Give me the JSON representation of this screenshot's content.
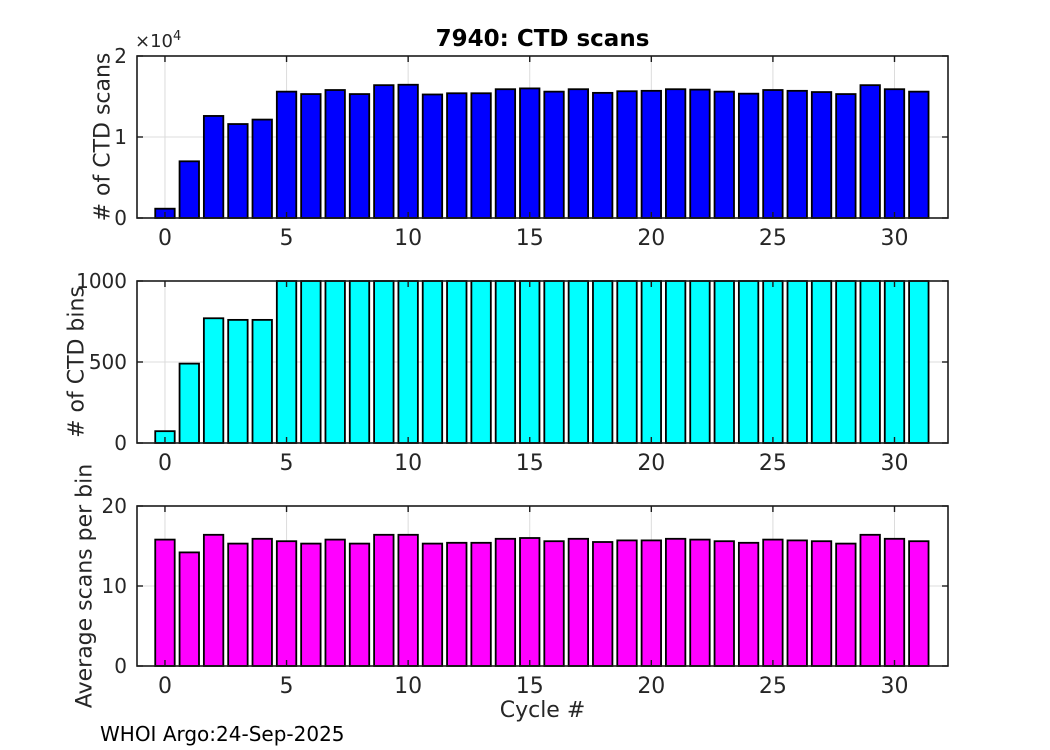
{
  "figure": {
    "title": "7940: CTD scans",
    "xlabel": "Cycle #",
    "footer": "WHOI Argo:24-Sep-2025",
    "y_exponent_base": "×10",
    "y_exponent_power": "4",
    "background_color": "#ffffff",
    "frame_color": "#1a1a1a",
    "grid_color": "#dcdcdc",
    "tick_label_color": "#262626"
  },
  "x_axis": {
    "ticks": [
      0,
      5,
      10,
      15,
      20,
      25,
      30
    ],
    "tick_labels": [
      "0",
      "5",
      "10",
      "15",
      "20",
      "25",
      "30"
    ],
    "xlim": [
      -1.15,
      32.2
    ],
    "bar_width_units": 0.8
  },
  "chart_data": [
    {
      "type": "bar",
      "name": "ctd-scans",
      "title": "7940: CTD scans",
      "ylabel": "# of CTD scans",
      "bar_color": "#0000ff",
      "bar_edge_color": "#000000",
      "ylim": [
        0,
        20000
      ],
      "yticks": [
        0,
        10000,
        20000
      ],
      "ytick_labels": [
        "0",
        "1",
        "2"
      ],
      "y_exponent": "×10⁴",
      "grid": true,
      "categories": [
        0,
        1,
        2,
        3,
        4,
        5,
        6,
        7,
        8,
        9,
        10,
        11,
        12,
        13,
        14,
        15,
        16,
        17,
        18,
        19,
        20,
        21,
        22,
        23,
        24,
        25,
        26,
        27,
        28,
        29,
        30,
        31
      ],
      "values": [
        1150,
        7000,
        12600,
        11600,
        12150,
        15600,
        15300,
        15800,
        15300,
        16400,
        16450,
        15250,
        15400,
        15400,
        15900,
        16000,
        15600,
        15900,
        15450,
        15650,
        15700,
        15900,
        15850,
        15600,
        15350,
        15800,
        15700,
        15550,
        15300,
        16400,
        15900,
        15600
      ]
    },
    {
      "type": "bar",
      "name": "ctd-bins",
      "ylabel": "# of CTD bins",
      "bar_color": "#00ffff",
      "bar_edge_color": "#000000",
      "ylim": [
        0,
        1000
      ],
      "yticks": [
        0,
        500,
        1000
      ],
      "ytick_labels": [
        "0",
        "500",
        "1000"
      ],
      "grid": true,
      "categories": [
        0,
        1,
        2,
        3,
        4,
        5,
        6,
        7,
        8,
        9,
        10,
        11,
        12,
        13,
        14,
        15,
        16,
        17,
        18,
        19,
        20,
        21,
        22,
        23,
        24,
        25,
        26,
        27,
        28,
        29,
        30,
        31
      ],
      "values": [
        73,
        490,
        770,
        760,
        760,
        1000,
        1000,
        1000,
        1000,
        1000,
        1000,
        1000,
        1000,
        1000,
        1000,
        1000,
        1000,
        1000,
        1000,
        1000,
        1000,
        1000,
        1000,
        1000,
        1000,
        1000,
        1000,
        1000,
        1000,
        1000,
        1000,
        1000
      ]
    },
    {
      "type": "bar",
      "name": "avg-scans-per-bin",
      "ylabel": "Average scans per bin",
      "xlabel": "Cycle #",
      "bar_color": "#ff00ff",
      "bar_edge_color": "#000000",
      "ylim": [
        0,
        20
      ],
      "yticks": [
        0,
        10,
        20
      ],
      "ytick_labels": [
        "0",
        "10",
        "20"
      ],
      "grid": true,
      "categories": [
        0,
        1,
        2,
        3,
        4,
        5,
        6,
        7,
        8,
        9,
        10,
        11,
        12,
        13,
        14,
        15,
        16,
        17,
        18,
        19,
        20,
        21,
        22,
        23,
        24,
        25,
        26,
        27,
        28,
        29,
        30,
        31
      ],
      "values": [
        15.8,
        14.2,
        16.4,
        15.3,
        15.9,
        15.6,
        15.3,
        15.8,
        15.3,
        16.4,
        16.4,
        15.3,
        15.4,
        15.4,
        15.9,
        16.0,
        15.6,
        15.9,
        15.5,
        15.7,
        15.7,
        15.9,
        15.8,
        15.6,
        15.4,
        15.8,
        15.7,
        15.6,
        15.3,
        16.4,
        15.9,
        15.6
      ]
    }
  ]
}
